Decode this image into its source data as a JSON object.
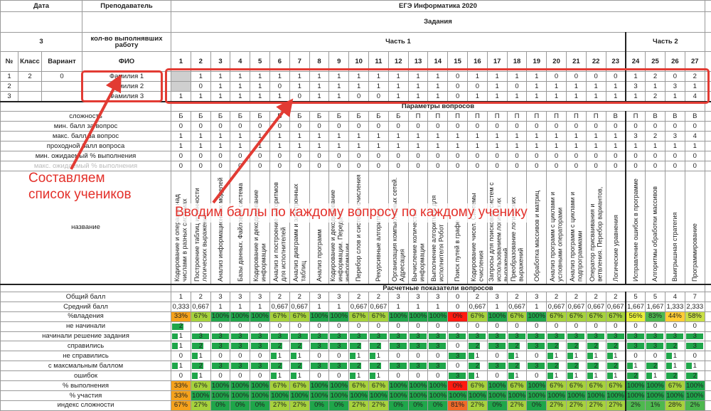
{
  "header": {
    "date_label": "Дата",
    "teacher_label": "Преподаватель",
    "exam_title": "ЕГЭ Информатика 2020",
    "tasks_label": "Задания",
    "count_value": "3",
    "count_label": "кол-во выполнявших работу",
    "part1": "Часть 1",
    "part2": "Часть 2",
    "col_no": "№",
    "col_class": "Класс",
    "col_variant": "Вариант",
    "col_fio": "ФИО"
  },
  "tasks": [
    "1",
    "2",
    "3",
    "4",
    "5",
    "6",
    "7",
    "8",
    "9",
    "10",
    "11",
    "12",
    "13",
    "14",
    "15",
    "16",
    "17",
    "18",
    "19",
    "20",
    "21",
    "22",
    "23",
    "24",
    "25",
    "26",
    "27"
  ],
  "students": [
    {
      "no": "1",
      "class": "2",
      "variant": "0",
      "fio": "Фамилия 1",
      "scores": [
        "",
        "1",
        "1",
        "1",
        "1",
        "1",
        "1",
        "1",
        "1",
        "1",
        "1",
        "1",
        "1",
        "1",
        "0",
        "1",
        "1",
        "1",
        "1",
        "0",
        "0",
        "0",
        "0",
        "1",
        "2",
        "0",
        "2"
      ]
    },
    {
      "no": "2",
      "class": "",
      "variant": "",
      "fio": "Фамилия 2",
      "scores": [
        "",
        "0",
        "1",
        "1",
        "1",
        "0",
        "1",
        "1",
        "1",
        "1",
        "1",
        "1",
        "1",
        "1",
        "0",
        "0",
        "1",
        "0",
        "1",
        "1",
        "1",
        "1",
        "1",
        "3",
        "1",
        "3",
        "1"
      ]
    },
    {
      "no": "3",
      "class": "",
      "variant": "",
      "fio": "Фамилия 3",
      "scores": [
        "1",
        "1",
        "1",
        "1",
        "1",
        "1",
        "0",
        "1",
        "1",
        "0",
        "0",
        "1",
        "1",
        "1",
        "0",
        "1",
        "1",
        "1",
        "1",
        "1",
        "1",
        "1",
        "1",
        "1",
        "2",
        "1",
        "4"
      ]
    }
  ],
  "params_title": "Параметры вопросов",
  "params": [
    {
      "label": "сложность",
      "values": [
        "Б",
        "Б",
        "Б",
        "Б",
        "Б",
        "Б",
        "Б",
        "Б",
        "Б",
        "Б",
        "Б",
        "Б",
        "П",
        "П",
        "П",
        "П",
        "П",
        "П",
        "П",
        "П",
        "П",
        "П",
        "В",
        "П",
        "В",
        "В",
        "В"
      ]
    },
    {
      "label": "мин. балл за вопрос",
      "values": [
        "0",
        "0",
        "0",
        "0",
        "0",
        "0",
        "0",
        "0",
        "0",
        "0",
        "0",
        "0",
        "0",
        "0",
        "0",
        "0",
        "0",
        "0",
        "0",
        "0",
        "0",
        "0",
        "0",
        "0",
        "0",
        "0",
        "0"
      ]
    },
    {
      "label": "макс. балл за вопрос",
      "values": [
        "1",
        "1",
        "1",
        "1",
        "1",
        "1",
        "1",
        "1",
        "1",
        "1",
        "1",
        "1",
        "1",
        "1",
        "1",
        "1",
        "1",
        "1",
        "1",
        "1",
        "1",
        "1",
        "1",
        "3",
        "2",
        "3",
        "4"
      ]
    },
    {
      "label": "проходной балл вопроса",
      "values": [
        "1",
        "1",
        "1",
        "1",
        "1",
        "1",
        "1",
        "1",
        "1",
        "1",
        "1",
        "1",
        "1",
        "1",
        "1",
        "1",
        "1",
        "1",
        "1",
        "1",
        "1",
        "1",
        "1",
        "1",
        "1",
        "1",
        "1"
      ]
    },
    {
      "label": "мин. ожидаемый % выполнения",
      "values": [
        "0",
        "0",
        "0",
        "0",
        "0",
        "0",
        "0",
        "0",
        "0",
        "0",
        "0",
        "0",
        "0",
        "0",
        "0",
        "0",
        "0",
        "0",
        "0",
        "0",
        "0",
        "0",
        "0",
        "0",
        "0",
        "0",
        "0"
      ]
    },
    {
      "label": "макс. ожидаемый % выполнения",
      "values": [
        "0",
        "0",
        "0",
        "0",
        "0",
        "0",
        "0",
        "0",
        "0",
        "0",
        "0",
        "0",
        "0",
        "0",
        "0",
        "0",
        "0",
        "0",
        "0",
        "0",
        "0",
        "0",
        "0",
        "0",
        "0",
        "0",
        "0"
      ],
      "faded": true
    }
  ],
  "names_label": "название",
  "task_names": [
    "Кодирование и операции над числами в разных системах",
    "Построение таблиц истинности логических выражений",
    "Анализ информационных моделей",
    "Базы данных. Файловая система",
    "Кодирование и декодирование информации",
    "Анализ и построение алгоритмов для исполнителей",
    "Анализ диаграмм и электронных таблиц",
    "Анализ программ",
    "Кодирование и декодирование информации. Передача информации",
    "Перебор слов и системы счисления",
    "Рекурсивные алгоритмы",
    "Организация компьютерных сетей. Адресация",
    "Вычисление количества информации",
    "Выполнение алгоритмов для исполнителя Робот",
    "Поиск путей в графе",
    "Кодирование чисел. Системы счисления",
    "Запросы для поисковых систем с использованием логических выражений",
    "Преобразование логических выражений",
    "Обработка массивов и матриц",
    "Анализ программ с циклами и условными операторами",
    "Анализ программ с циклами и подпрограммами",
    "Оператор присваивания и ветвления. Перебор вариантов,",
    "Логические уравнения",
    "Исправление ошибок в программе",
    "Алгоритмы обработки массивов",
    "Выигрышная стратегия",
    "Программирование"
  ],
  "calc_title": "Расчетные показатели вопросов",
  "calc": [
    {
      "label": "Общий балл",
      "kind": "plain",
      "values": [
        "1",
        "2",
        "3",
        "3",
        "3",
        "2",
        "2",
        "3",
        "3",
        "2",
        "2",
        "3",
        "3",
        "3",
        "0",
        "2",
        "3",
        "2",
        "3",
        "2",
        "2",
        "2",
        "2",
        "5",
        "5",
        "4",
        "7"
      ]
    },
    {
      "label": "Средний балл",
      "kind": "plain",
      "values": [
        "0,333",
        "0,667",
        "1",
        "1",
        "1",
        "0,667",
        "0,667",
        "1",
        "1",
        "0,667",
        "0,667",
        "1",
        "1",
        "1",
        "0",
        "0,667",
        "1",
        "0,667",
        "1",
        "0,667",
        "0,667",
        "0,667",
        "0,667",
        "1,667",
        "1,667",
        "1,333",
        "2,333"
      ]
    },
    {
      "label": "%владения",
      "kind": "pct",
      "values": [
        "33%",
        "67%",
        "100%",
        "100%",
        "100%",
        "67%",
        "67%",
        "100%",
        "100%",
        "67%",
        "67%",
        "100%",
        "100%",
        "100%",
        "0%",
        "67%",
        "100%",
        "67%",
        "100%",
        "67%",
        "67%",
        "67%",
        "67%",
        "56%",
        "83%",
        "44%",
        "58%"
      ]
    },
    {
      "label": "не начинали",
      "kind": "bar",
      "values": [
        "2",
        "0",
        "0",
        "0",
        "0",
        "0",
        "0",
        "0",
        "0",
        "0",
        "0",
        "0",
        "0",
        "0",
        "0",
        "0",
        "0",
        "0",
        "0",
        "0",
        "0",
        "0",
        "0",
        "0",
        "0",
        "0",
        "0"
      ]
    },
    {
      "label": "начинали решение задания",
      "kind": "bar",
      "values": [
        "1",
        "3",
        "3",
        "3",
        "3",
        "3",
        "3",
        "3",
        "3",
        "3",
        "3",
        "3",
        "3",
        "3",
        "3",
        "3",
        "3",
        "3",
        "3",
        "3",
        "3",
        "3",
        "3",
        "3",
        "3",
        "3",
        "3"
      ]
    },
    {
      "label": "справились",
      "kind": "bar",
      "values": [
        "1",
        "2",
        "3",
        "3",
        "3",
        "2",
        "2",
        "3",
        "3",
        "2",
        "2",
        "3",
        "3",
        "3",
        "0",
        "2",
        "3",
        "2",
        "3",
        "2",
        "2",
        "2",
        "2",
        "3",
        "3",
        "2",
        "3"
      ]
    },
    {
      "label": "не справились",
      "kind": "bar",
      "values": [
        "0",
        "1",
        "0",
        "0",
        "0",
        "1",
        "1",
        "0",
        "0",
        "1",
        "1",
        "0",
        "0",
        "0",
        "3",
        "1",
        "0",
        "1",
        "0",
        "1",
        "1",
        "1",
        "1",
        "0",
        "0",
        "1",
        "0"
      ]
    },
    {
      "label": "с максмальным баллом",
      "kind": "bar",
      "values": [
        "1",
        "2",
        "3",
        "3",
        "3",
        "2",
        "2",
        "3",
        "3",
        "2",
        "2",
        "3",
        "3",
        "3",
        "0",
        "2",
        "3",
        "2",
        "3",
        "2",
        "2",
        "2",
        "2",
        "1",
        "2",
        "1",
        "1"
      ]
    },
    {
      "label": "ошибок",
      "kind": "bar",
      "values": [
        "0",
        "1",
        "0",
        "0",
        "0",
        "1",
        "1",
        "0",
        "0",
        "1",
        "1",
        "0",
        "0",
        "0",
        "3",
        "1",
        "0",
        "1",
        "0",
        "1",
        "1",
        "1",
        "1",
        "2",
        "1",
        "2",
        "2"
      ]
    },
    {
      "label": "% выполнения",
      "kind": "pct",
      "values": [
        "33%",
        "67%",
        "100%",
        "100%",
        "100%",
        "67%",
        "67%",
        "100%",
        "100%",
        "67%",
        "67%",
        "100%",
        "100%",
        "100%",
        "0%",
        "67%",
        "100%",
        "67%",
        "100%",
        "67%",
        "67%",
        "67%",
        "67%",
        "100%",
        "100%",
        "67%",
        "100%"
      ]
    },
    {
      "label": "% участия",
      "kind": "pct",
      "values": [
        "33%",
        "100%",
        "100%",
        "100%",
        "100%",
        "100%",
        "100%",
        "100%",
        "100%",
        "100%",
        "100%",
        "100%",
        "100%",
        "100%",
        "100%",
        "100%",
        "100%",
        "100%",
        "100%",
        "100%",
        "100%",
        "100%",
        "100%",
        "100%",
        "100%",
        "100%",
        "100%"
      ]
    },
    {
      "label": "индекс сложности",
      "kind": "idx",
      "values": [
        "67%",
        "27%",
        "0%",
        "0%",
        "0%",
        "27%",
        "27%",
        "0%",
        "0%",
        "27%",
        "27%",
        "0%",
        "0%",
        "0%",
        "81%",
        "27%",
        "0%",
        "27%",
        "0%",
        "27%",
        "27%",
        "27%",
        "27%",
        "2%",
        "1%",
        "28%",
        "2%"
      ]
    }
  ],
  "bar_max": 3,
  "colors": {
    "red": "#ff1a10",
    "orange": "#f5a21c",
    "amber": "#ffcc33",
    "yellow": "#e8f03a",
    "yellowgreen": "#c9df45",
    "lightgreen": "#a6d23c",
    "green": "#4db84e",
    "darkgreen": "#1fa64a",
    "redorange": "#f06a28",
    "annotation": "#e23b33"
  },
  "annotations": {
    "note1": "Составляем списокучеников",
    "note1_line1": "Составляем",
    "note1_line2": "список учеников",
    "note2": "Вводим баллы по каждому вопросу по каждому ученику"
  }
}
